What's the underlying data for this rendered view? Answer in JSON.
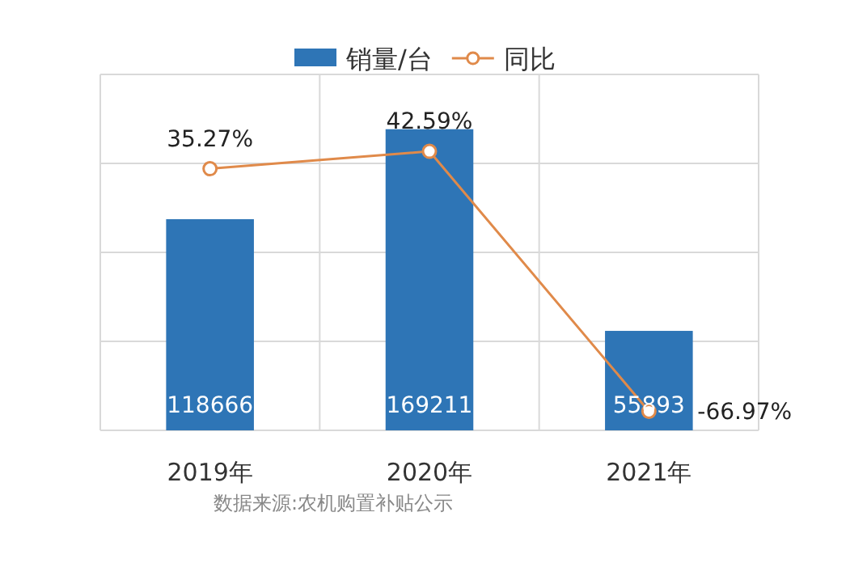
{
  "chart_data": {
    "type": "bar",
    "categories": [
      "2019年",
      "2020年",
      "2021年"
    ],
    "series": [
      {
        "name": "销量/台",
        "color": "#2e75b6",
        "values": [
          118666,
          169211,
          55893
        ],
        "value_labels": [
          "118666",
          "169211",
          "55893"
        ]
      },
      {
        "name": "同比",
        "type": "line",
        "axis": "y2",
        "color": "#e08a4a",
        "marker": "circle",
        "values": [
          35.27,
          42.59,
          -66.97
        ],
        "value_labels": [
          "35.27%",
          "42.59%",
          "-66.97%"
        ]
      }
    ],
    "ylim": [
      0,
      200000
    ],
    "yticks": [
      {
        "value": 0,
        "label": null
      },
      {
        "value": 50000,
        "label": null
      },
      {
        "value": 100000,
        "label": null
      },
      {
        "value": 150000,
        "label": null
      },
      {
        "value": 200000,
        "label": null
      }
    ],
    "y2lim": [
      -75,
      75
    ],
    "tick_labels": "x",
    "grid": true,
    "legend": "top",
    "annotations": [
      "数据来源:农机购置补贴公示"
    ]
  }
}
